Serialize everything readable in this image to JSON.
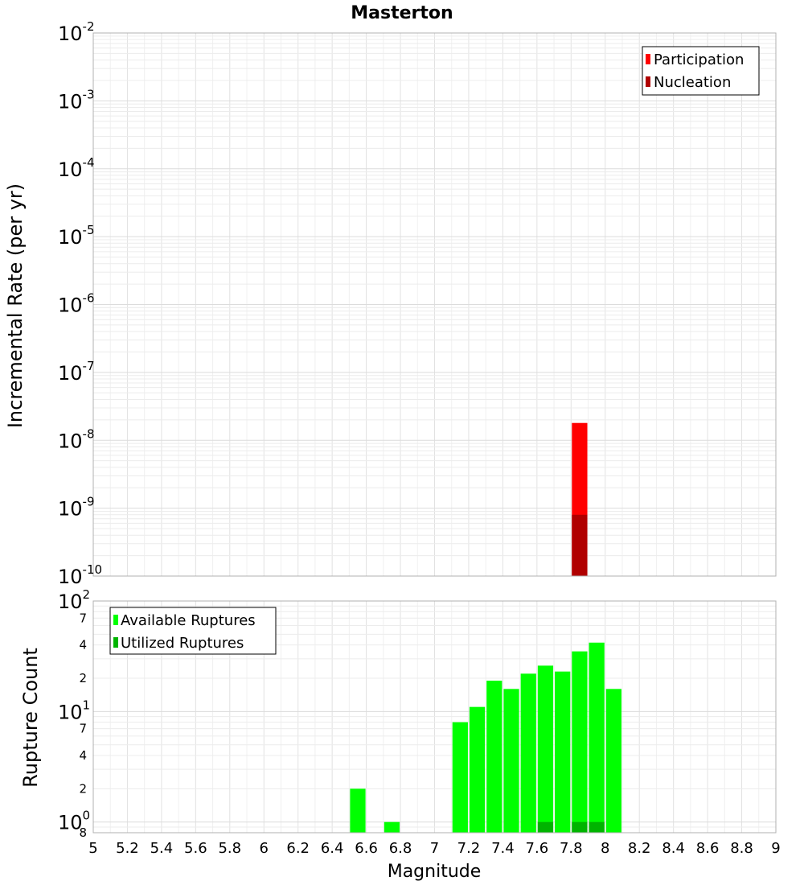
{
  "chart_data": {
    "title": "Masterton",
    "x_axis": {
      "label": "Magnitude",
      "range": [
        5,
        9
      ],
      "ticks": [
        5,
        5.2,
        5.4,
        5.6,
        5.8,
        6,
        6.2,
        6.4,
        6.6,
        6.8,
        7,
        7.2,
        7.4,
        7.6,
        7.8,
        8,
        8.2,
        8.4,
        8.6,
        8.8,
        9
      ],
      "tick_labels": [
        "5",
        "5.2",
        "5.4",
        "5.6",
        "5.8",
        "6",
        "6.2",
        "6.4",
        "6.6",
        "6.8",
        "7",
        "7.2",
        "7.4",
        "7.6",
        "7.8",
        "8",
        "8.2",
        "8.4",
        "8.6",
        "8.8",
        "9"
      ],
      "bin_width": 0.1
    },
    "panels": [
      {
        "type": "bar",
        "ylabel": "Incremental Rate (per yr)",
        "y_scale": "log",
        "ylim": [
          1e-10,
          0.01
        ],
        "y_tick_labels": [
          {
            "base": "10",
            "exp": "-2",
            "value": 0.01
          },
          {
            "base": "10",
            "exp": "-3",
            "value": 0.001
          },
          {
            "base": "10",
            "exp": "-4",
            "value": 0.0001
          },
          {
            "base": "10",
            "exp": "-5",
            "value": 1e-05
          },
          {
            "base": "10",
            "exp": "-6",
            "value": 1e-06
          },
          {
            "base": "10",
            "exp": "-7",
            "value": 1e-07
          },
          {
            "base": "10",
            "exp": "-8",
            "value": 1e-08
          },
          {
            "base": "10",
            "exp": "-9",
            "value": 1e-09
          },
          {
            "base": "10",
            "exp": "-10",
            "value": 1e-10
          }
        ],
        "grid": true,
        "legend": {
          "placement": "top-right",
          "entries": [
            {
              "name": "Participation",
              "color": "#ff0000"
            },
            {
              "name": "Nucleation",
              "color": "#b00000"
            }
          ]
        },
        "series": [
          {
            "name": "Participation",
            "color": "#ff0000",
            "points": [
              {
                "x": 7.85,
                "y": 1.8e-08
              }
            ]
          },
          {
            "name": "Nucleation",
            "color": "#b00000",
            "points": [
              {
                "x": 7.85,
                "y": 8e-10
              }
            ]
          }
        ]
      },
      {
        "type": "bar",
        "ylabel": "Rupture Count",
        "y_scale": "log",
        "ylim": [
          0.8,
          100
        ],
        "y_tick_labels": [
          {
            "base": "10",
            "exp": "2",
            "value": 100
          },
          {
            "label": "7",
            "value": 70
          },
          {
            "label": "4",
            "value": 40
          },
          {
            "label": "2",
            "value": 20
          },
          {
            "base": "10",
            "exp": "1",
            "value": 10
          },
          {
            "label": "7",
            "value": 7
          },
          {
            "label": "4",
            "value": 4
          },
          {
            "label": "2",
            "value": 2
          },
          {
            "base": "10",
            "exp": "0",
            "value": 1
          },
          {
            "label": "8",
            "value": 0.8
          }
        ],
        "grid": true,
        "legend": {
          "placement": "top-left",
          "entries": [
            {
              "name": "Available Ruptures",
              "color": "#00ff00"
            },
            {
              "name": "Utilized Ruptures",
              "color": "#00b400"
            }
          ]
        },
        "series": [
          {
            "name": "Available Ruptures",
            "color": "#00ff00",
            "points": [
              {
                "x": 6.55,
                "y": 2
              },
              {
                "x": 6.75,
                "y": 1
              },
              {
                "x": 7.15,
                "y": 8
              },
              {
                "x": 7.25,
                "y": 11
              },
              {
                "x": 7.35,
                "y": 19
              },
              {
                "x": 7.45,
                "y": 16
              },
              {
                "x": 7.55,
                "y": 22
              },
              {
                "x": 7.65,
                "y": 26
              },
              {
                "x": 7.75,
                "y": 23
              },
              {
                "x": 7.85,
                "y": 35
              },
              {
                "x": 7.95,
                "y": 42
              },
              {
                "x": 8.05,
                "y": 16
              }
            ]
          },
          {
            "name": "Utilized Ruptures",
            "color": "#00b400",
            "points": [
              {
                "x": 7.65,
                "y": 1
              },
              {
                "x": 7.85,
                "y": 1
              },
              {
                "x": 7.95,
                "y": 1
              }
            ]
          }
        ]
      }
    ]
  }
}
